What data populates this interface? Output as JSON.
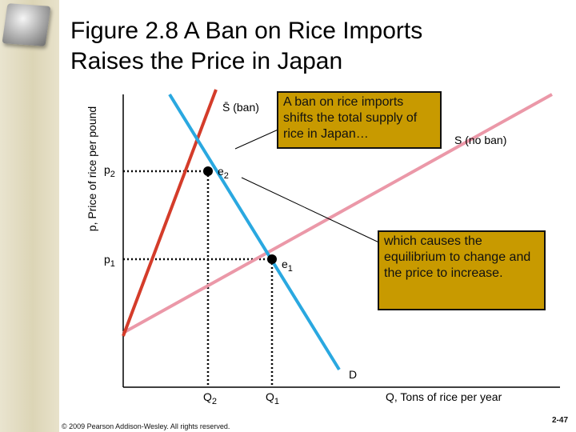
{
  "slide": {
    "title_line1": "Figure 2.8  A Ban on Rice Imports",
    "title_line2": "Raises the Price in Japan",
    "footer": "© 2009 Pearson Addison-Wesley. All rights reserved.",
    "page_number": "2-47"
  },
  "diagram": {
    "y_axis_label": "p, Price of rice per pound",
    "x_axis_label": "Q, Tons of rice per year",
    "curve_labels": {
      "supply_ban": "S̄ (ban)",
      "supply_no_ban": "S (no ban)",
      "demand": "D"
    },
    "price_labels": {
      "p2_base": "p",
      "p2_sub": "2",
      "p1_base": "p",
      "p1_sub": "1"
    },
    "quantity_labels": {
      "q2_base": "Q",
      "q2_sub": "2",
      "q1_base": "Q",
      "q1_sub": "1"
    },
    "equilibrium_labels": {
      "e2_base": "e",
      "e2_sub": "2",
      "e1_base": "e",
      "e1_sub": "1"
    },
    "callout_top": "A ban on rice imports shifts the total supply of rice in Japan…",
    "callout_bottom": "which causes the equilibrium to change and the price to increase.",
    "colors": {
      "supply_ban": "#d43c2a",
      "supply_no_ban": "#eb98a8",
      "demand": "#2aa8e0",
      "callout_fill": "#c89a00"
    }
  }
}
